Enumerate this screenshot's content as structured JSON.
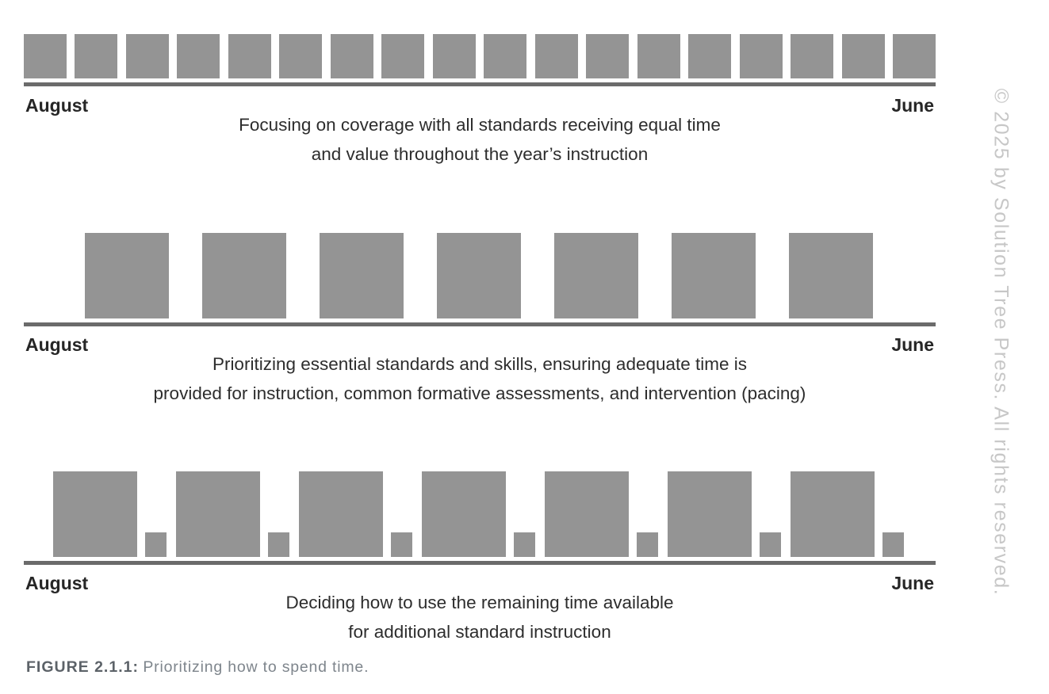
{
  "colors": {
    "square": "#949494",
    "line": "#6b6b6b",
    "label": "#262626",
    "caption": "#2d2d2d",
    "figure_label": "#5c6268",
    "figure_caption": "#7e858c",
    "watermark": "#c7c7c7"
  },
  "timelines": [
    {
      "start_label": "August",
      "end_label": "June",
      "caption_lines": [
        "Focusing on coverage with all standards receiving equal time",
        "and value throughout the year’s instruction"
      ],
      "blocks": {
        "pattern": "equal",
        "count": 18
      }
    },
    {
      "start_label": "August",
      "end_label": "June",
      "caption_lines": [
        "Prioritizing essential standards and skills, ensuring adequate time is",
        "provided for instruction, common formative assessments, and intervention (pacing)"
      ],
      "blocks": {
        "pattern": "prioritized",
        "count": 7
      }
    },
    {
      "start_label": "August",
      "end_label": "June",
      "caption_lines": [
        "Deciding how to use the remaining time available",
        "for additional standard instruction"
      ],
      "blocks": {
        "pattern": "large-with-remainder",
        "large_count": 7,
        "small_count": 7
      }
    }
  ],
  "figure": {
    "label": "FIGURE 2.1.1:",
    "caption": "Prioritizing how to spend time."
  },
  "watermark": "© 2025 by Solution Tree Press. All rights reserved."
}
